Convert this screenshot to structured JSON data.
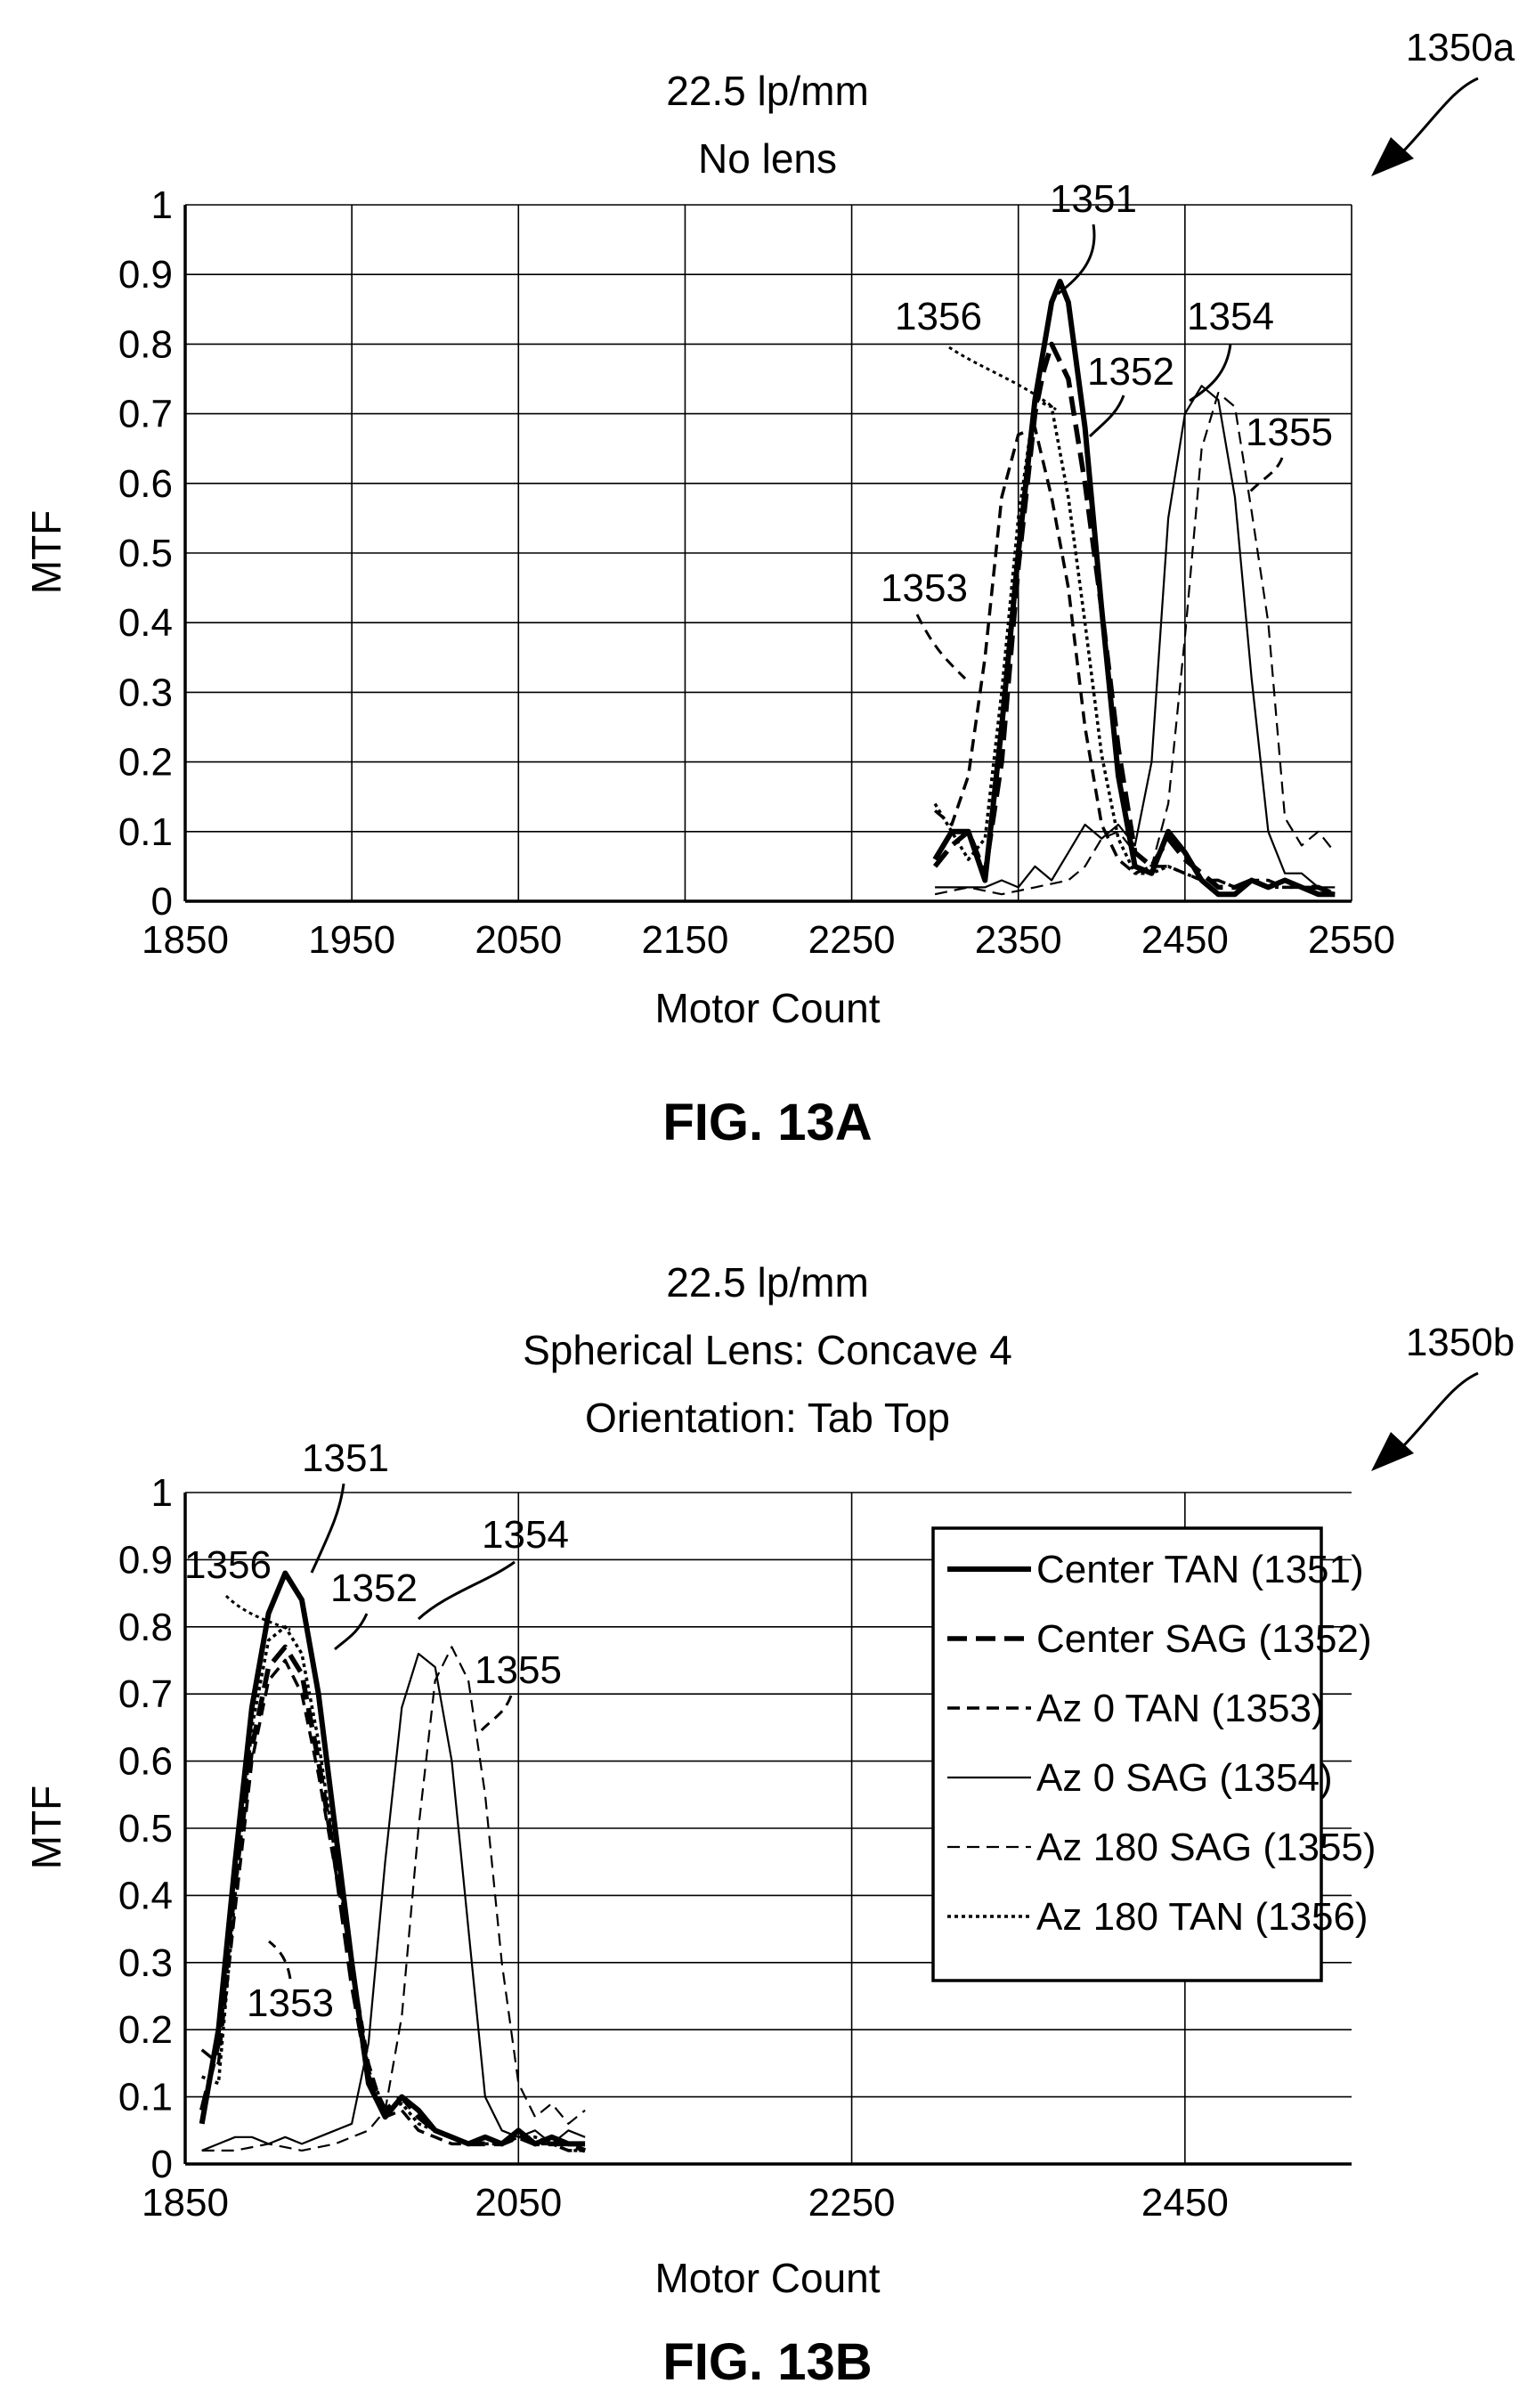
{
  "figures": [
    {
      "caption": "FIG. 13A",
      "ref": "1350a",
      "title_lines": [
        "22.5 lp/mm",
        "No lens"
      ]
    },
    {
      "caption": "FIG. 13B",
      "ref": "1350b",
      "title_lines": [
        "22.5 lp/mm",
        "Spherical Lens: Concave 4",
        "Orientation: Tab Top"
      ]
    }
  ],
  "chart_data": [
    {
      "type": "line",
      "title": "22.5 lp/mm\nNo lens",
      "xlabel": "Motor Count",
      "ylabel": "MTF",
      "xlim": [
        1850,
        2550
      ],
      "ylim": [
        0,
        1
      ],
      "xticks": [
        "1850",
        "1950",
        "2050",
        "2150",
        "2250",
        "2350",
        "2450",
        "2550"
      ],
      "yticks": [
        "0",
        "0.1",
        "0.2",
        "0.3",
        "0.4",
        "0.5",
        "0.6",
        "0.7",
        "0.8",
        "0.9",
        "1"
      ],
      "grid": true,
      "series": [
        {
          "id": "1351",
          "style": "solid-bold",
          "x": [
            2300,
            2310,
            2320,
            2330,
            2340,
            2350,
            2360,
            2370,
            2375,
            2380,
            2390,
            2400,
            2410,
            2420,
            2430,
            2440,
            2450,
            2460,
            2470,
            2480,
            2490,
            2500,
            2510,
            2520,
            2530,
            2540
          ],
          "y": [
            0.06,
            0.1,
            0.1,
            0.03,
            0.25,
            0.5,
            0.72,
            0.86,
            0.89,
            0.86,
            0.68,
            0.42,
            0.18,
            0.05,
            0.04,
            0.1,
            0.07,
            0.03,
            0.01,
            0.01,
            0.03,
            0.02,
            0.03,
            0.02,
            0.01,
            0.01
          ]
        },
        {
          "id": "1352",
          "style": "dashed-bold",
          "x": [
            2300,
            2310,
            2320,
            2330,
            2340,
            2350,
            2360,
            2365,
            2370,
            2380,
            2390,
            2400,
            2410,
            2420,
            2430,
            2440,
            2450,
            2460,
            2470,
            2480,
            2490,
            2500,
            2510,
            2520,
            2530,
            2540
          ],
          "y": [
            0.05,
            0.08,
            0.1,
            0.04,
            0.2,
            0.48,
            0.7,
            0.76,
            0.8,
            0.75,
            0.6,
            0.42,
            0.22,
            0.07,
            0.05,
            0.09,
            0.06,
            0.04,
            0.02,
            0.02,
            0.03,
            0.02,
            0.03,
            0.02,
            0.02,
            0.01
          ]
        },
        {
          "id": "1353",
          "style": "dashed",
          "x": [
            2300,
            2310,
            2320,
            2330,
            2340,
            2350,
            2360,
            2370,
            2380,
            2390,
            2400,
            2410,
            2420,
            2430,
            2440,
            2450,
            2460,
            2470,
            2480,
            2490,
            2500,
            2510,
            2520,
            2530,
            2540
          ],
          "y": [
            0.13,
            0.11,
            0.18,
            0.35,
            0.58,
            0.67,
            0.68,
            0.58,
            0.45,
            0.25,
            0.11,
            0.06,
            0.04,
            0.05,
            0.05,
            0.04,
            0.03,
            0.03,
            0.02,
            0.03,
            0.03,
            0.02,
            0.02,
            0.02,
            0.01
          ]
        },
        {
          "id": "1354",
          "style": "solid-thin",
          "x": [
            2300,
            2310,
            2320,
            2330,
            2340,
            2350,
            2360,
            2370,
            2380,
            2390,
            2400,
            2410,
            2420,
            2430,
            2440,
            2450,
            2460,
            2470,
            2480,
            2490,
            2500,
            2510,
            2520,
            2530,
            2540
          ],
          "y": [
            0.02,
            0.02,
            0.02,
            0.02,
            0.03,
            0.02,
            0.05,
            0.03,
            0.07,
            0.11,
            0.09,
            0.11,
            0.08,
            0.2,
            0.55,
            0.7,
            0.74,
            0.72,
            0.58,
            0.32,
            0.1,
            0.04,
            0.04,
            0.02,
            0.02
          ]
        },
        {
          "id": "1355",
          "style": "dashed-thin",
          "x": [
            2300,
            2320,
            2340,
            2360,
            2380,
            2390,
            2400,
            2410,
            2420,
            2430,
            2440,
            2450,
            2460,
            2470,
            2480,
            2490,
            2500,
            2510,
            2520,
            2530,
            2540
          ],
          "y": [
            0.01,
            0.02,
            0.01,
            0.02,
            0.03,
            0.05,
            0.09,
            0.1,
            0.07,
            0.05,
            0.14,
            0.38,
            0.65,
            0.73,
            0.71,
            0.56,
            0.4,
            0.12,
            0.08,
            0.1,
            0.07
          ]
        },
        {
          "id": "1356",
          "style": "dotted",
          "x": [
            2300,
            2310,
            2320,
            2330,
            2340,
            2350,
            2360,
            2370,
            2380,
            2390,
            2400,
            2410,
            2420,
            2430,
            2440,
            2450,
            2460,
            2470,
            2480,
            2490,
            2500,
            2510,
            2520,
            2530,
            2540
          ],
          "y": [
            0.14,
            0.1,
            0.06,
            0.09,
            0.3,
            0.55,
            0.72,
            0.71,
            0.58,
            0.4,
            0.21,
            0.09,
            0.04,
            0.04,
            0.05,
            0.04,
            0.03,
            0.03,
            0.02,
            0.03,
            0.02,
            0.02,
            0.02,
            0.01,
            0.01
          ]
        }
      ],
      "annotations": [
        "1351",
        "1352",
        "1353",
        "1354",
        "1355",
        "1356"
      ]
    },
    {
      "type": "line",
      "title": "22.5 lp/mm\nSpherical Lens: Concave 4\nOrientation: Tab Top",
      "xlabel": "Motor Count",
      "ylabel": "MTF",
      "xlim": [
        1850,
        2550
      ],
      "ylim": [
        0,
        1
      ],
      "xticks": [
        "1850",
        "2050",
        "2250",
        "2450"
      ],
      "yticks": [
        "0",
        "0.1",
        "0.2",
        "0.3",
        "0.4",
        "0.5",
        "0.6",
        "0.7",
        "0.8",
        "0.9",
        "1"
      ],
      "grid": true,
      "legend_position": "top-right",
      "legend": [
        "Center TAN (1351)",
        "Center SAG (1352)",
        "Az 0 TAN (1353)",
        "Az 0 SAG (1354)",
        "Az 180 SAG (1355)",
        "Az 180 TAN (1356)"
      ],
      "series": [
        {
          "id": "1351",
          "name": "Center TAN (1351)",
          "style": "solid-bold",
          "x": [
            1860,
            1870,
            1880,
            1890,
            1900,
            1910,
            1920,
            1930,
            1940,
            1950,
            1960,
            1970,
            1980,
            1990,
            2000,
            2010,
            2020,
            2030,
            2040,
            2050,
            2060,
            2070,
            2080,
            2090
          ],
          "y": [
            0.06,
            0.2,
            0.45,
            0.68,
            0.82,
            0.88,
            0.84,
            0.7,
            0.5,
            0.3,
            0.12,
            0.07,
            0.1,
            0.08,
            0.05,
            0.04,
            0.03,
            0.04,
            0.03,
            0.05,
            0.03,
            0.04,
            0.03,
            0.03
          ]
        },
        {
          "id": "1352",
          "name": "Center SAG (1352)",
          "style": "dashed-bold",
          "x": [
            1860,
            1870,
            1880,
            1890,
            1900,
            1910,
            1920,
            1930,
            1940,
            1950,
            1960,
            1970,
            1980,
            1990,
            2000,
            2010,
            2020,
            2030,
            2040,
            2050,
            2060,
            2070,
            2080,
            2090
          ],
          "y": [
            0.08,
            0.18,
            0.42,
            0.62,
            0.74,
            0.77,
            0.73,
            0.6,
            0.45,
            0.27,
            0.13,
            0.08,
            0.1,
            0.07,
            0.05,
            0.04,
            0.03,
            0.03,
            0.03,
            0.04,
            0.03,
            0.03,
            0.03,
            0.02
          ]
        },
        {
          "id": "1353",
          "name": "Az 0 TAN (1353)",
          "style": "dashed",
          "x": [
            1860,
            1870,
            1880,
            1890,
            1900,
            1910,
            1920,
            1930,
            1940,
            1950,
            1960,
            1970,
            1980,
            1990,
            2000,
            2010,
            2020,
            2030,
            2040,
            2050,
            2060,
            2070,
            2080,
            2090
          ],
          "y": [
            0.17,
            0.15,
            0.38,
            0.6,
            0.72,
            0.75,
            0.7,
            0.58,
            0.44,
            0.3,
            0.15,
            0.07,
            0.08,
            0.05,
            0.04,
            0.03,
            0.03,
            0.04,
            0.03,
            0.04,
            0.03,
            0.03,
            0.02,
            0.02
          ]
        },
        {
          "id": "1354",
          "name": "Az 0 SAG (1354)",
          "style": "solid-thin",
          "x": [
            1860,
            1870,
            1880,
            1890,
            1900,
            1910,
            1920,
            1930,
            1940,
            1950,
            1960,
            1970,
            1980,
            1990,
            2000,
            2010,
            2020,
            2030,
            2040,
            2050,
            2060,
            2070,
            2080,
            2090
          ],
          "y": [
            0.02,
            0.03,
            0.04,
            0.04,
            0.03,
            0.04,
            0.03,
            0.04,
            0.05,
            0.06,
            0.18,
            0.45,
            0.68,
            0.76,
            0.74,
            0.6,
            0.35,
            0.1,
            0.05,
            0.04,
            0.05,
            0.03,
            0.05,
            0.04
          ]
        },
        {
          "id": "1355",
          "name": "Az 180 SAG (1355)",
          "style": "dashed-thin",
          "x": [
            1860,
            1880,
            1900,
            1920,
            1940,
            1960,
            1970,
            1980,
            1990,
            2000,
            2010,
            2020,
            2030,
            2040,
            2050,
            2060,
            2070,
            2080,
            2090
          ],
          "y": [
            0.02,
            0.02,
            0.03,
            0.02,
            0.03,
            0.05,
            0.08,
            0.22,
            0.5,
            0.72,
            0.77,
            0.72,
            0.55,
            0.3,
            0.12,
            0.07,
            0.09,
            0.06,
            0.08
          ]
        },
        {
          "id": "1356",
          "name": "Az 180 TAN (1356)",
          "style": "dotted",
          "x": [
            1860,
            1870,
            1880,
            1890,
            1900,
            1910,
            1920,
            1930,
            1940,
            1950,
            1960,
            1970,
            1980,
            1990,
            2000,
            2010,
            2020,
            2030,
            2040,
            2050,
            2060,
            2070,
            2080,
            2090
          ],
          "y": [
            0.13,
            0.12,
            0.4,
            0.65,
            0.78,
            0.8,
            0.76,
            0.63,
            0.46,
            0.3,
            0.14,
            0.08,
            0.09,
            0.06,
            0.05,
            0.04,
            0.03,
            0.03,
            0.03,
            0.04,
            0.04,
            0.03,
            0.02,
            0.02
          ]
        }
      ],
      "annotations": [
        "1351",
        "1352",
        "1353",
        "1354",
        "1355",
        "1356"
      ]
    }
  ]
}
